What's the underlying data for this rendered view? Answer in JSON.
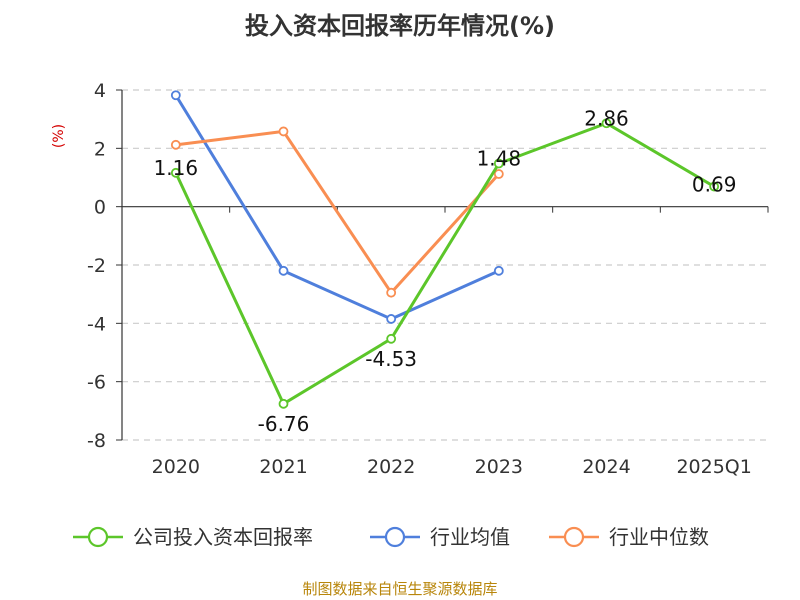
{
  "chart_data": {
    "type": "line",
    "title": "投入资本回报率历年情况(%)",
    "ylabel": "(%)",
    "categories": [
      "2020",
      "2021",
      "2022",
      "2023",
      "2024",
      "2025Q1"
    ],
    "ylim": [
      -8,
      4
    ],
    "yticks": [
      4,
      2,
      0,
      -2,
      -4,
      -6,
      -8
    ],
    "grid": true,
    "legend_position": "bottom",
    "series": [
      {
        "name": "公司投入资本回报率",
        "color": "#5cc62a",
        "values": [
          1.16,
          -6.76,
          -4.53,
          1.48,
          2.86,
          0.69
        ],
        "labels": [
          "1.16",
          "-6.76",
          "-4.53",
          "1.48",
          "2.86",
          "0.69"
        ]
      },
      {
        "name": "行业均值",
        "color": "#4f7fdc",
        "values": [
          3.82,
          -2.2,
          -3.85,
          -2.2,
          null,
          null
        ]
      },
      {
        "name": "行业中位数",
        "color": "#f98e52",
        "values": [
          2.12,
          2.58,
          -2.95,
          1.12,
          null,
          null
        ]
      }
    ]
  },
  "source": "制图数据来自恒生聚源数据库"
}
